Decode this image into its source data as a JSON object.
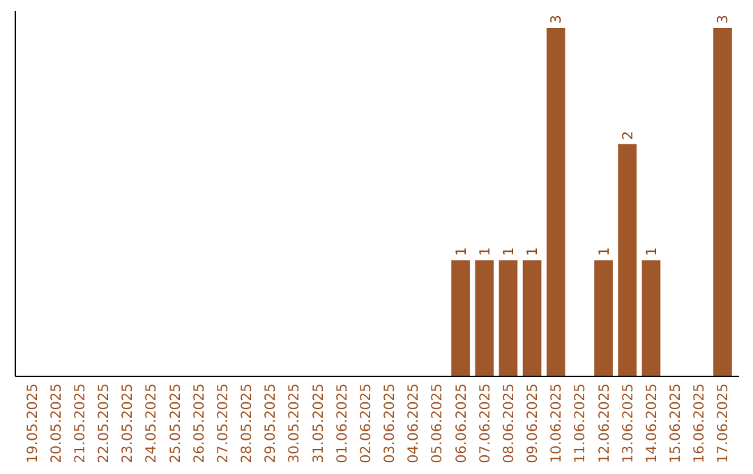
{
  "chart_data": {
    "type": "bar",
    "categories": [
      "19.05.2025",
      "20.05.2025",
      "21.05.2025",
      "22.05.2025",
      "23.05.2025",
      "24.05.2025",
      "25.05.2025",
      "26.05.2025",
      "27.05.2025",
      "28.05.2025",
      "29.05.2025",
      "30.05.2025",
      "31.05.2025",
      "01.06.2025",
      "02.06.2025",
      "03.06.2025",
      "04.06.2025",
      "05.06.2025",
      "06.06.2025",
      "07.06.2025",
      "08.06.2025",
      "09.06.2025",
      "10.06.2025",
      "11.06.2025",
      "12.06.2025",
      "13.06.2025",
      "14.06.2025",
      "15.06.2025",
      "16.06.2025",
      "17.06.2025"
    ],
    "values": [
      null,
      null,
      null,
      null,
      null,
      null,
      null,
      null,
      null,
      null,
      null,
      null,
      null,
      null,
      null,
      null,
      null,
      null,
      1,
      1,
      1,
      1,
      3,
      null,
      1,
      2,
      1,
      null,
      null,
      3
    ],
    "data_labels": true,
    "color": "#a0582a"
  }
}
